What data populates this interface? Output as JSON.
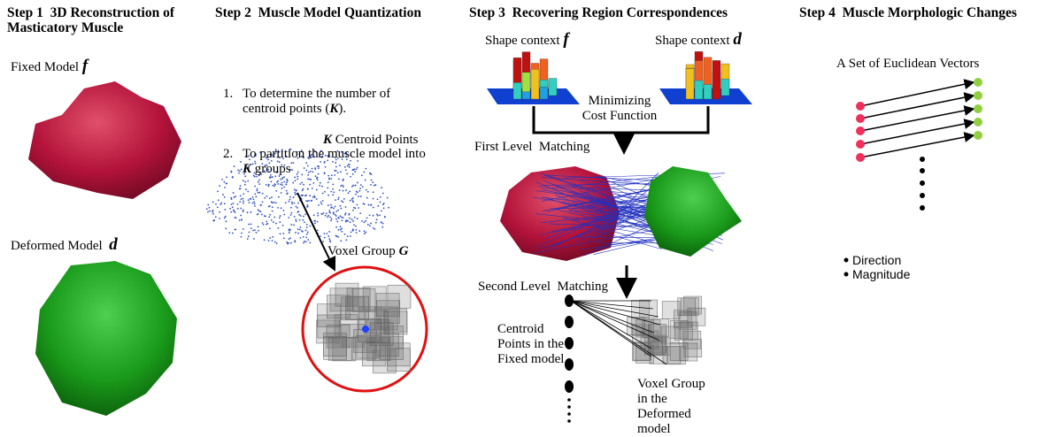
{
  "steps": [
    {
      "label": "Step 1",
      "title": "3D Reconstruction of Masticatory Muscle"
    },
    {
      "label": "Step 2",
      "title": "Muscle Model Quantization"
    },
    {
      "label": "Step 3",
      "title": "Recovering Region Correspondences"
    },
    {
      "label": "Step 4",
      "title": "Muscle Morphologic Changes"
    }
  ],
  "step1": {
    "fixed": {
      "text": "Fixed Model",
      "symbol": "f"
    },
    "deformed": {
      "text": "Deformed Model",
      "symbol": "d"
    }
  },
  "step2": {
    "list": [
      {
        "number": "1.",
        "parts": [
          "To determine the number of centroid points (",
          "K",
          ")."
        ]
      },
      {
        "number": "2.",
        "parts": [
          "To partition the muscle model into ",
          "K",
          " groups"
        ]
      }
    ],
    "centroid": {
      "symbol": "K",
      "text": "Centroid Points"
    },
    "voxel": {
      "text": "Voxel Group",
      "symbol": "G"
    }
  },
  "step3": {
    "shape_f": {
      "text": "Shape context",
      "symbol": "f"
    },
    "shape_d": {
      "text": "Shape context",
      "symbol": "d"
    },
    "cost": "Minimizing Cost Function",
    "first": "First Level  Matching",
    "second": "Second Level  Matching",
    "centroid_points": "Centroid Points in the Fixed model",
    "voxel_group": "Voxel Group in the Deformed model"
  },
  "step4": {
    "vectors": "A Set of Euclidean Vectors",
    "bullets": [
      "Direction",
      "Magnitude"
    ]
  }
}
